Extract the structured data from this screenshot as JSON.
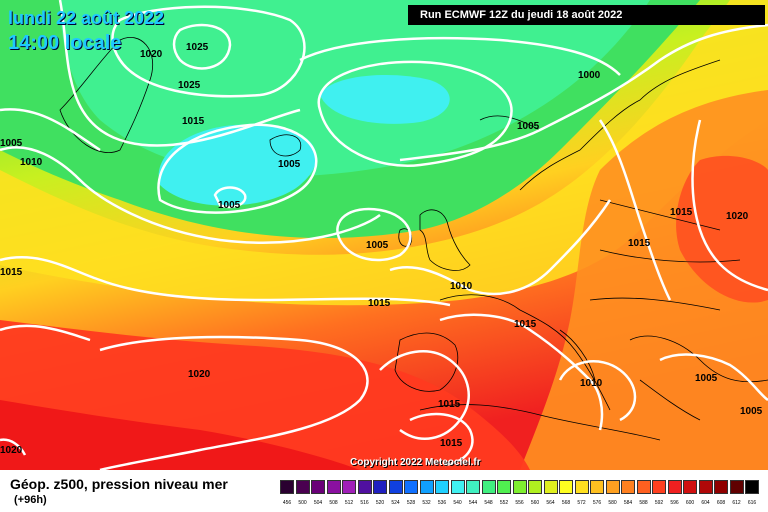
{
  "header": {
    "date": "lundi 22 août 2022",
    "time": "14:00 locale",
    "run": "Run ECMWF 12Z du jeudi 18 août 2022"
  },
  "footer": {
    "title": "Géop. z500, pression niveau mer",
    "subtitle": "(+96h)",
    "copyright": "Copyright 2022 Meteociel.fr"
  },
  "isobar_labels": [
    {
      "id": "1025-a",
      "text": "1025"
    },
    {
      "id": "1025-b",
      "text": "1025"
    },
    {
      "id": "1020-nw",
      "text": "1020"
    },
    {
      "id": "1015-a",
      "text": "1015"
    },
    {
      "id": "1005-w",
      "text": "1005"
    },
    {
      "id": "1010-w",
      "text": "1010"
    },
    {
      "id": "1005-a",
      "text": "1005"
    },
    {
      "id": "1005-b",
      "text": "1005"
    },
    {
      "id": "1000",
      "text": "1000"
    },
    {
      "id": "1005-c",
      "text": "1005"
    },
    {
      "id": "1015-b",
      "text": "1015"
    },
    {
      "id": "1020-e",
      "text": "1020"
    },
    {
      "id": "1005-d",
      "text": "1005"
    },
    {
      "id": "1015-c",
      "text": "1015"
    },
    {
      "id": "1015-d",
      "text": "1015"
    },
    {
      "id": "1010-b",
      "text": "1010"
    },
    {
      "id": "1015-e",
      "text": "1015"
    },
    {
      "id": "1015-f",
      "text": "1015"
    },
    {
      "id": "1020-sw",
      "text": "1020"
    },
    {
      "id": "1010-c",
      "text": "1010"
    },
    {
      "id": "1005-e",
      "text": "1005"
    },
    {
      "id": "1005-f",
      "text": "1005"
    },
    {
      "id": "1015-g",
      "text": "1015"
    },
    {
      "id": "1015-h",
      "text": "1015"
    },
    {
      "id": "1020-s",
      "text": "1020"
    }
  ],
  "scale": {
    "values": [
      "456",
      "500",
      "504",
      "508",
      "512",
      "516",
      "520",
      "524",
      "528",
      "532",
      "536",
      "540",
      "544",
      "548",
      "552",
      "556",
      "560",
      "564",
      "568",
      "572",
      "576",
      "580",
      "584",
      "588",
      "592",
      "596",
      "600",
      "604",
      "608",
      "612",
      "616"
    ],
    "colors": [
      "#2a0030",
      "#4a0050",
      "#6a0078",
      "#8a10a0",
      "#a020b8",
      "#5010a0",
      "#2020c0",
      "#1040e0",
      "#1070ff",
      "#10a0ff",
      "#20d0ff",
      "#40f0f0",
      "#40f0c0",
      "#40f080",
      "#50f050",
      "#80f030",
      "#b0f020",
      "#e0f020",
      "#ffff20",
      "#ffe020",
      "#ffc020",
      "#ffa020",
      "#ff8020",
      "#ff6020",
      "#ff4020",
      "#f02020",
      "#d01010",
      "#b00808",
      "#900000",
      "#600000",
      "#000000"
    ]
  }
}
